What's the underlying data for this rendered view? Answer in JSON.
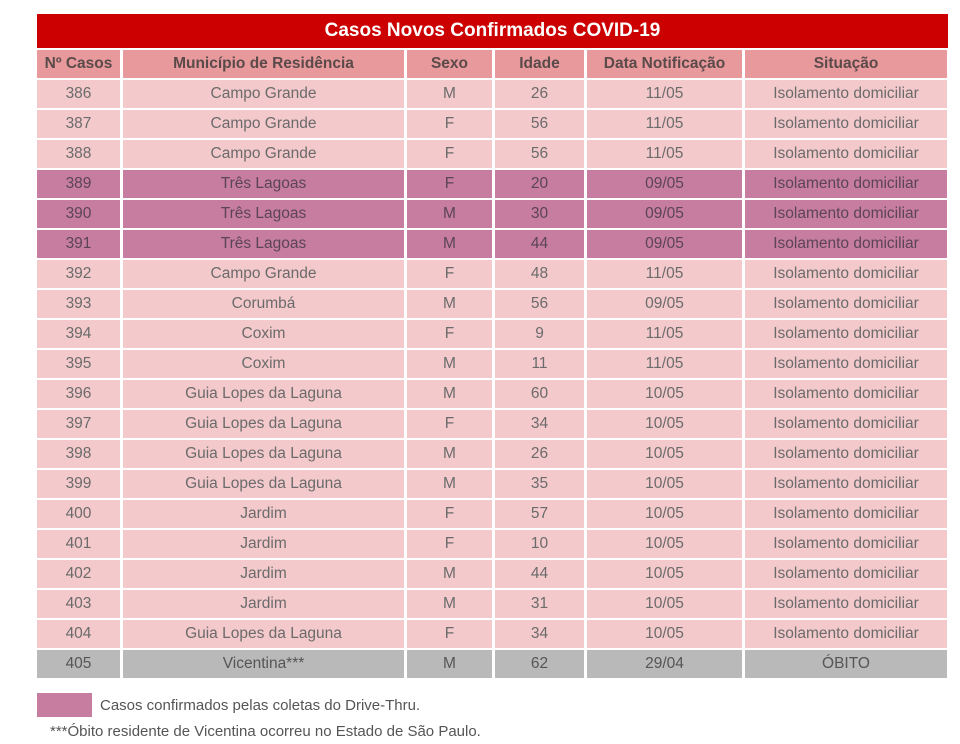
{
  "title": "Casos Novos Confirmados COVID-19",
  "headers": [
    "Nº Casos",
    "Município de Residência",
    "Sexo",
    "Idade",
    "Data Notificação",
    "Situação"
  ],
  "colors": {
    "title": "#cc0000",
    "header": "#e8999c",
    "row": "#f3c9cb",
    "drive_thru": "#c67da0",
    "obito": "#b9b9b9"
  },
  "rows": [
    {
      "n": "386",
      "municipio": "Campo Grande",
      "sexo": "M",
      "idade": "26",
      "data": "11/05",
      "situacao": "Isolamento domiciliar",
      "type": "normal"
    },
    {
      "n": "387",
      "municipio": "Campo Grande",
      "sexo": "F",
      "idade": "56",
      "data": "11/05",
      "situacao": "Isolamento domiciliar",
      "type": "normal"
    },
    {
      "n": "388",
      "municipio": "Campo Grande",
      "sexo": "F",
      "idade": "56",
      "data": "11/05",
      "situacao": "Isolamento domiciliar",
      "type": "normal"
    },
    {
      "n": "389",
      "municipio": "Três Lagoas",
      "sexo": "F",
      "idade": "20",
      "data": "09/05",
      "situacao": "Isolamento domiciliar",
      "type": "drive-thru"
    },
    {
      "n": "390",
      "municipio": "Três Lagoas",
      "sexo": "M",
      "idade": "30",
      "data": "09/05",
      "situacao": "Isolamento domiciliar",
      "type": "drive-thru"
    },
    {
      "n": "391",
      "municipio": "Três Lagoas",
      "sexo": "M",
      "idade": "44",
      "data": "09/05",
      "situacao": "Isolamento domiciliar",
      "type": "drive-thru"
    },
    {
      "n": "392",
      "municipio": "Campo Grande",
      "sexo": "F",
      "idade": "48",
      "data": "11/05",
      "situacao": "Isolamento domiciliar",
      "type": "normal"
    },
    {
      "n": "393",
      "municipio": "Corumbá",
      "sexo": "M",
      "idade": "56",
      "data": "09/05",
      "situacao": "Isolamento domiciliar",
      "type": "normal"
    },
    {
      "n": "394",
      "municipio": "Coxim",
      "sexo": "F",
      "idade": "9",
      "data": "11/05",
      "situacao": "Isolamento domiciliar",
      "type": "normal"
    },
    {
      "n": "395",
      "municipio": "Coxim",
      "sexo": "M",
      "idade": "11",
      "data": "11/05",
      "situacao": "Isolamento domiciliar",
      "type": "normal"
    },
    {
      "n": "396",
      "municipio": "Guia Lopes da Laguna",
      "sexo": "M",
      "idade": "60",
      "data": "10/05",
      "situacao": "Isolamento domiciliar",
      "type": "normal"
    },
    {
      "n": "397",
      "municipio": "Guia Lopes da Laguna",
      "sexo": "F",
      "idade": "34",
      "data": "10/05",
      "situacao": "Isolamento domiciliar",
      "type": "normal"
    },
    {
      "n": "398",
      "municipio": "Guia Lopes da Laguna",
      "sexo": "M",
      "idade": "26",
      "data": "10/05",
      "situacao": "Isolamento domiciliar",
      "type": "normal"
    },
    {
      "n": "399",
      "municipio": "Guia Lopes da Laguna",
      "sexo": "M",
      "idade": "35",
      "data": "10/05",
      "situacao": "Isolamento domiciliar",
      "type": "normal"
    },
    {
      "n": "400",
      "municipio": "Jardim",
      "sexo": "F",
      "idade": "57",
      "data": "10/05",
      "situacao": "Isolamento domiciliar",
      "type": "normal"
    },
    {
      "n": "401",
      "municipio": "Jardim",
      "sexo": "F",
      "idade": "10",
      "data": "10/05",
      "situacao": "Isolamento domiciliar",
      "type": "normal"
    },
    {
      "n": "402",
      "municipio": "Jardim",
      "sexo": "M",
      "idade": "44",
      "data": "10/05",
      "situacao": "Isolamento domiciliar",
      "type": "normal"
    },
    {
      "n": "403",
      "municipio": "Jardim",
      "sexo": "M",
      "idade": "31",
      "data": "10/05",
      "situacao": "Isolamento domiciliar",
      "type": "normal"
    },
    {
      "n": "404",
      "municipio": "Guia Lopes da Laguna",
      "sexo": "F",
      "idade": "34",
      "data": "10/05",
      "situacao": "Isolamento domiciliar",
      "type": "normal"
    },
    {
      "n": "405",
      "municipio": "Vicentina***",
      "sexo": "M",
      "idade": "62",
      "data": "29/04",
      "situacao": "ÓBITO",
      "type": "obito"
    }
  ],
  "legend": "Casos confirmados pelas coletas do Drive-Thru.",
  "footnote": "***Óbito residente de Vicentina ocorreu no Estado de São Paulo."
}
